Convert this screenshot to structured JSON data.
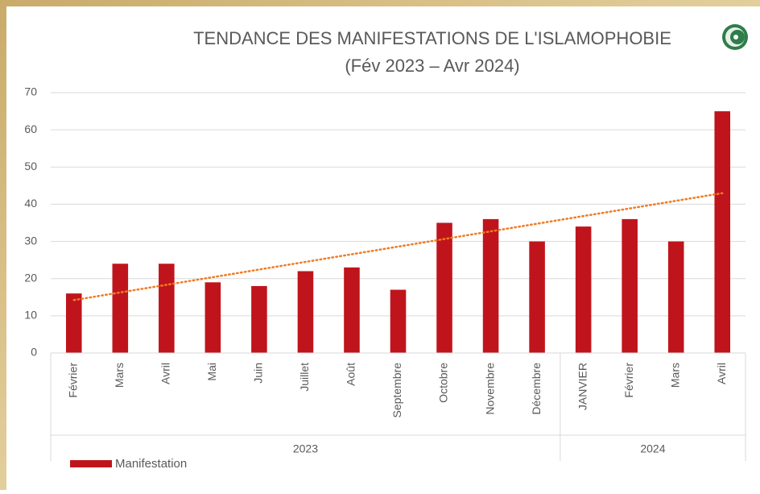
{
  "chart_data": {
    "type": "bar",
    "title": "TENDANCE DES MANIFESTATIONS DE L'ISLAMOPHOBIE",
    "subtitle": "(Fév 2023 – Avr 2024)",
    "categories": [
      "Février",
      "Mars",
      "Avril",
      "Mai",
      "Juin",
      "Juillet",
      "Août",
      "Septembre",
      "Octobre",
      "Novembre",
      "Décembre",
      "JANVIER",
      "Février",
      "Mars",
      "Avril"
    ],
    "groups": [
      {
        "name": "2023",
        "size": 11
      },
      {
        "name": "2024",
        "size": 4
      }
    ],
    "series": [
      {
        "name": "Manifestation",
        "color": "#c0141c",
        "values": [
          16,
          24,
          24,
          19,
          18,
          22,
          23,
          17,
          35,
          36,
          30,
          34,
          36,
          30,
          65
        ]
      }
    ],
    "trendline": {
      "type": "linear",
      "color": "#f07b24"
    },
    "ylim": [
      0,
      70
    ],
    "yticks": [
      0,
      10,
      20,
      30,
      40,
      50,
      60,
      70
    ],
    "grid": true,
    "legend": "bottom-left"
  }
}
